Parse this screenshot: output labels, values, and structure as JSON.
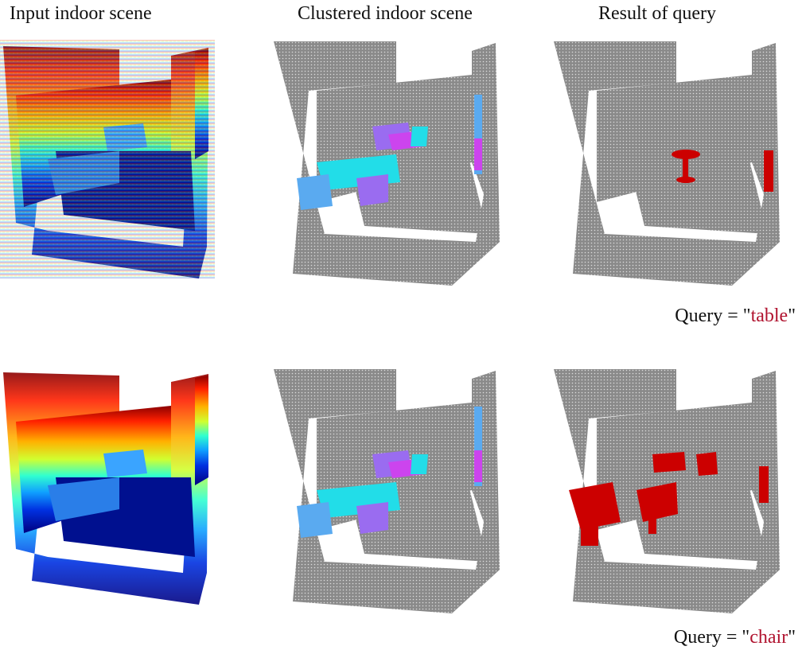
{
  "column_titles": [
    "Input indoor scene",
    "Clustered indoor scene",
    "Result of query"
  ],
  "queries": [
    {
      "prefix": "Query = \"",
      "term": "table",
      "suffix": "\""
    },
    {
      "prefix": "Query = \"",
      "term": "chair",
      "suffix": "\""
    }
  ],
  "colors": {
    "gray_points": "#808080",
    "highlight_red": "#cc0000",
    "query_term": "#b0122e",
    "cluster_cyan": "#22dde8",
    "cluster_purple": "#9a6cf0",
    "cluster_magenta": "#cc44ee",
    "cluster_lightblue": "#5aaaf0",
    "jet_dark_blue": "#00007f"
  },
  "rows": [
    {
      "query_index": 0,
      "highlighted_objects": [
        "table"
      ]
    },
    {
      "query_index": 1,
      "highlighted_objects": [
        "chair"
      ]
    }
  ]
}
